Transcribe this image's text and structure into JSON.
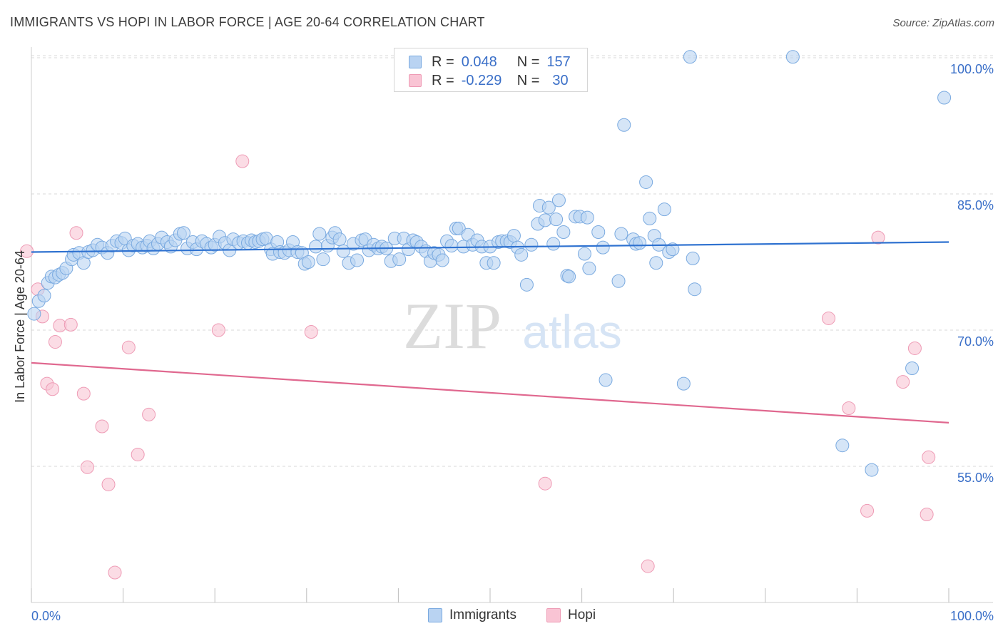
{
  "title": "IMMIGRANTS VS HOPI IN LABOR FORCE | AGE 20-64 CORRELATION CHART",
  "source": "Source: ZipAtlas.com",
  "watermark": {
    "zip": "ZIP",
    "atlas": "atlas"
  },
  "legend": {
    "rows": [
      {
        "r_label": "R =",
        "r_value": "0.048",
        "n_label": "N =",
        "n_value": "157"
      },
      {
        "r_label": "R =",
        "r_value": "-0.229",
        "n_label": "N =",
        "n_value": "30"
      }
    ]
  },
  "bottom_legend": [
    "Immigrants",
    "Hopi"
  ],
  "colors": {
    "immigrants_fill": "#b9d3f2",
    "immigrants_stroke": "#7aaae0",
    "immigrants_line": "#2f72d0",
    "hopi_fill": "#f9c4d4",
    "hopi_stroke": "#ee9bb5",
    "hopi_line": "#e0688f",
    "grid": "#d8d8d8",
    "tick_label": "#3a6fc8"
  },
  "chart_data": {
    "type": "scatter",
    "title": "IMMIGRANTS VS HOPI IN LABOR FORCE | AGE 20-64 CORRELATION CHART",
    "xlabel": "",
    "ylabel": "In Labor Force | Age 20-64",
    "xlim": [
      0,
      100
    ],
    "ylim": [
      40,
      102
    ],
    "x_tick_labels": [
      "0.0%",
      "100.0%"
    ],
    "y_ticks": [
      55,
      70,
      85,
      100
    ],
    "y_tick_labels": [
      "55.0%",
      "70.0%",
      "85.0%",
      "100.0%"
    ],
    "grid": true,
    "series": [
      {
        "name": "Immigrants",
        "trend": {
          "x": [
            0,
            100
          ],
          "y": [
            78.6,
            79.7
          ]
        },
        "points": [
          [
            0.3,
            71.8
          ],
          [
            0.8,
            73.2
          ],
          [
            1.4,
            73.8
          ],
          [
            1.8,
            75.2
          ],
          [
            2.2,
            75.9
          ],
          [
            2.6,
            75.8
          ],
          [
            3.0,
            76.1
          ],
          [
            3.4,
            76.3
          ],
          [
            3.8,
            76.8
          ],
          [
            4.4,
            77.8
          ],
          [
            4.6,
            78.3
          ],
          [
            5.2,
            78.5
          ],
          [
            5.7,
            77.4
          ],
          [
            6.2,
            78.6
          ],
          [
            6.7,
            78.8
          ],
          [
            7.2,
            79.4
          ],
          [
            7.7,
            79.1
          ],
          [
            8.3,
            78.5
          ],
          [
            8.8,
            79.3
          ],
          [
            9.3,
            79.8
          ],
          [
            9.8,
            79.6
          ],
          [
            10.2,
            80.1
          ],
          [
            10.6,
            78.8
          ],
          [
            11.1,
            79.3
          ],
          [
            11.6,
            79.5
          ],
          [
            12.1,
            79.1
          ],
          [
            12.6,
            79.3
          ],
          [
            12.9,
            79.8
          ],
          [
            13.3,
            79.0
          ],
          [
            13.8,
            79.5
          ],
          [
            14.2,
            80.2
          ],
          [
            14.8,
            79.7
          ],
          [
            15.2,
            79.2
          ],
          [
            15.7,
            79.9
          ],
          [
            16.2,
            80.6
          ],
          [
            16.6,
            80.7
          ],
          [
            17.0,
            79.0
          ],
          [
            17.6,
            79.7
          ],
          [
            18.0,
            78.9
          ],
          [
            18.6,
            79.8
          ],
          [
            19.1,
            79.5
          ],
          [
            19.6,
            79.1
          ],
          [
            20.0,
            79.4
          ],
          [
            20.5,
            80.3
          ],
          [
            21.1,
            79.6
          ],
          [
            21.6,
            78.8
          ],
          [
            22.0,
            80.0
          ],
          [
            22.6,
            79.6
          ],
          [
            23.1,
            79.8
          ],
          [
            23.6,
            79.6
          ],
          [
            24.0,
            79.9
          ],
          [
            24.4,
            79.7
          ],
          [
            24.8,
            79.8
          ],
          [
            25.2,
            80.0
          ],
          [
            25.6,
            80.1
          ],
          [
            26.1,
            78.9
          ],
          [
            26.3,
            78.4
          ],
          [
            26.8,
            79.7
          ],
          [
            27.1,
            78.6
          ],
          [
            27.6,
            78.5
          ],
          [
            28.1,
            78.8
          ],
          [
            28.5,
            79.7
          ],
          [
            29.0,
            78.6
          ],
          [
            29.5,
            78.5
          ],
          [
            29.8,
            77.3
          ],
          [
            30.2,
            77.5
          ],
          [
            31.0,
            79.2
          ],
          [
            31.4,
            80.6
          ],
          [
            31.8,
            77.8
          ],
          [
            32.3,
            79.3
          ],
          [
            32.8,
            80.2
          ],
          [
            33.1,
            80.7
          ],
          [
            33.6,
            80.0
          ],
          [
            34.0,
            78.7
          ],
          [
            34.6,
            77.4
          ],
          [
            35.1,
            79.5
          ],
          [
            35.5,
            77.7
          ],
          [
            36.0,
            79.9
          ],
          [
            36.4,
            80.0
          ],
          [
            36.8,
            78.8
          ],
          [
            37.3,
            79.4
          ],
          [
            37.8,
            79.0
          ],
          [
            38.2,
            79.2
          ],
          [
            38.7,
            79.0
          ],
          [
            39.2,
            77.6
          ],
          [
            39.6,
            80.1
          ],
          [
            40.1,
            77.8
          ],
          [
            40.6,
            80.1
          ],
          [
            41.1,
            78.9
          ],
          [
            41.6,
            79.9
          ],
          [
            42.0,
            79.7
          ],
          [
            42.5,
            79.2
          ],
          [
            43.0,
            78.7
          ],
          [
            43.5,
            77.6
          ],
          [
            43.9,
            78.5
          ],
          [
            44.4,
            78.3
          ],
          [
            44.8,
            77.7
          ],
          [
            45.3,
            79.8
          ],
          [
            45.8,
            79.3
          ],
          [
            46.3,
            81.2
          ],
          [
            46.6,
            81.2
          ],
          [
            47.1,
            79.2
          ],
          [
            47.6,
            80.5
          ],
          [
            48.1,
            79.4
          ],
          [
            48.6,
            79.9
          ],
          [
            49.1,
            79.2
          ],
          [
            49.6,
            77.4
          ],
          [
            50.0,
            79.2
          ],
          [
            50.4,
            77.4
          ],
          [
            50.9,
            79.7
          ],
          [
            51.3,
            79.8
          ],
          [
            51.8,
            79.8
          ],
          [
            52.2,
            79.7
          ],
          [
            52.6,
            80.4
          ],
          [
            53.0,
            79.1
          ],
          [
            53.4,
            78.3
          ],
          [
            54.0,
            75.0
          ],
          [
            54.5,
            79.4
          ],
          [
            55.2,
            81.7
          ],
          [
            55.4,
            83.7
          ],
          [
            56.0,
            82.1
          ],
          [
            56.4,
            83.5
          ],
          [
            56.9,
            79.5
          ],
          [
            57.2,
            82.2
          ],
          [
            57.5,
            84.3
          ],
          [
            58.0,
            80.8
          ],
          [
            58.4,
            76.0
          ],
          [
            58.6,
            75.9
          ],
          [
            59.3,
            82.5
          ],
          [
            59.8,
            82.5
          ],
          [
            60.3,
            78.4
          ],
          [
            60.6,
            82.4
          ],
          [
            60.8,
            76.8
          ],
          [
            61.8,
            80.8
          ],
          [
            62.3,
            79.1
          ],
          [
            62.6,
            64.5
          ],
          [
            64.0,
            75.4
          ],
          [
            64.3,
            80.6
          ],
          [
            64.6,
            92.6
          ],
          [
            65.6,
            80.0
          ],
          [
            65.9,
            79.5
          ],
          [
            66.3,
            79.6
          ],
          [
            67.0,
            86.3
          ],
          [
            67.4,
            82.3
          ],
          [
            67.9,
            80.4
          ],
          [
            68.1,
            77.4
          ],
          [
            68.4,
            79.4
          ],
          [
            69.0,
            83.3
          ],
          [
            69.5,
            78.6
          ],
          [
            69.9,
            78.9
          ],
          [
            71.1,
            64.1
          ],
          [
            72.1,
            77.9
          ],
          [
            72.3,
            74.5
          ],
          [
            71.8,
            100.1
          ],
          [
            83.0,
            100.1
          ],
          [
            88.4,
            57.3
          ],
          [
            91.6,
            54.6
          ],
          [
            96.0,
            65.8
          ],
          [
            99.5,
            95.6
          ]
        ]
      },
      {
        "name": "Hopi",
        "trend": {
          "x": [
            0,
            100
          ],
          "y": [
            66.4,
            59.8
          ]
        },
        "points": [
          [
            -0.5,
            78.7
          ],
          [
            0.7,
            74.5
          ],
          [
            1.2,
            71.5
          ],
          [
            2.6,
            68.7
          ],
          [
            1.7,
            64.1
          ],
          [
            2.3,
            63.5
          ],
          [
            3.1,
            70.5
          ],
          [
            4.3,
            70.6
          ],
          [
            4.9,
            80.7
          ],
          [
            5.7,
            63.0
          ],
          [
            6.1,
            54.9
          ],
          [
            7.7,
            59.4
          ],
          [
            8.4,
            53.0
          ],
          [
            9.1,
            43.3
          ],
          [
            10.6,
            68.1
          ],
          [
            11.6,
            56.3
          ],
          [
            12.8,
            60.7
          ],
          [
            20.4,
            70.0
          ],
          [
            23.0,
            88.6
          ],
          [
            30.5,
            69.8
          ],
          [
            56.0,
            53.1
          ],
          [
            67.2,
            44.0
          ],
          [
            86.9,
            71.3
          ],
          [
            89.1,
            61.4
          ],
          [
            91.1,
            50.1
          ],
          [
            92.3,
            80.2
          ],
          [
            95.0,
            64.3
          ],
          [
            96.3,
            68.0
          ],
          [
            97.6,
            49.7
          ],
          [
            97.8,
            56.0
          ]
        ]
      }
    ]
  }
}
